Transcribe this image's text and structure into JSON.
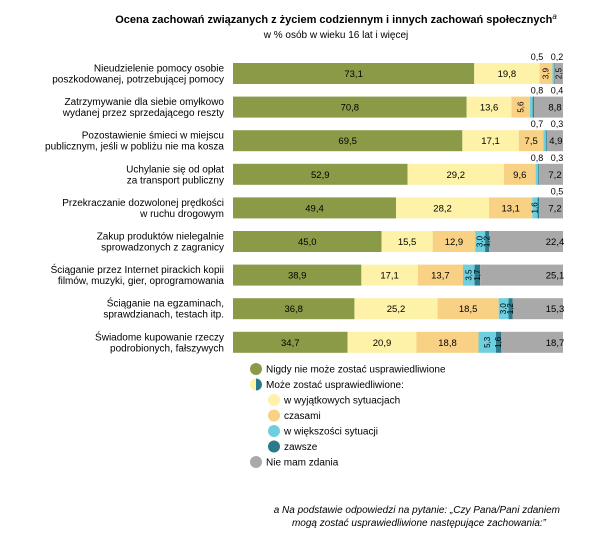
{
  "chart_data": {
    "type": "bar",
    "orientation": "horizontal",
    "stacked": true,
    "title": "Ocena zachowań związanych z życiem codziennym i innych zachowań społecznych",
    "title_marker": "a",
    "subtitle": "w % osób w wieku 16 lat i więcej",
    "categories": [
      [
        "Nieudzielenie pomocy osobie",
        "poszkodowanej, potrzebującej pomocy"
      ],
      [
        "Zatrzymywanie dla siebie omyłkowo",
        "wydanej przez sprzedającego reszty"
      ],
      [
        "Pozostawienie śmieci w miejscu",
        "publicznym, jeśli w pobliżu nie ma kosza"
      ],
      [
        "Uchylanie się od opłat",
        "za transport publiczny"
      ],
      [
        "Przekraczanie dozwolonej prędkości",
        "w ruchu drogowym"
      ],
      [
        "Zakup produktów nielegalnie",
        "sprowadzonych z zagranicy"
      ],
      [
        "Ściąganie przez Internet pirackich kopii",
        "filmów, muzyki, gier, oprogramowania"
      ],
      [
        "Ściąganie na egzaminach,",
        "sprawdzianach, testach itp."
      ],
      [
        "Świadome kupowanie rzeczy",
        "podrobionych, fałszywych"
      ]
    ],
    "series": [
      {
        "name": "Nigdy nie może zostać usprawiedliwione",
        "color": "#8a9a47",
        "values": [
          73.1,
          70.8,
          69.5,
          52.9,
          49.4,
          45.0,
          38.9,
          36.8,
          34.7
        ]
      },
      {
        "name": "w wyjątkowych sytuacjach",
        "color": "#fdf2a8",
        "values": [
          19.8,
          13.6,
          17.1,
          29.2,
          28.2,
          15.5,
          17.1,
          25.2,
          20.9
        ]
      },
      {
        "name": "czasami",
        "color": "#f8d184",
        "values": [
          3.9,
          5.6,
          7.5,
          9.6,
          13.1,
          12.9,
          13.7,
          18.5,
          18.8
        ]
      },
      {
        "name": "w większości sytuacji",
        "color": "#6ecfde",
        "values": [
          0.5,
          0.8,
          0.7,
          0.8,
          1.6,
          3.0,
          3.5,
          3.0,
          5.3
        ]
      },
      {
        "name": "zawsze",
        "color": "#2a7a8c",
        "values": [
          0.2,
          0.4,
          0.3,
          0.3,
          0.5,
          1.2,
          1.7,
          1.2,
          1.6
        ]
      },
      {
        "name": "Nie mam zdania",
        "color": "#a9a9a9",
        "values": [
          2.5,
          8.8,
          4.9,
          7.2,
          7.2,
          22.4,
          25.1,
          15.3,
          18.7
        ]
      }
    ],
    "value_labels": [
      [
        "73,1",
        "19,8",
        "3,9",
        "0,5",
        "0,2",
        "2,5"
      ],
      [
        "70,8",
        "13,6",
        "5,6",
        "0,8",
        "0,4",
        "8,8"
      ],
      [
        "69,5",
        "17,1",
        "7,5",
        "0,7",
        "0,3",
        "4,9"
      ],
      [
        "52,9",
        "29,2",
        "9,6",
        "0,8",
        "0,3",
        "7,2"
      ],
      [
        "49,4",
        "28,2",
        "13,1",
        "1,6",
        "0,5",
        "7,2"
      ],
      [
        "45,0",
        "15,5",
        "12,9",
        "3,0",
        "1,2",
        "22,4"
      ],
      [
        "38,9",
        "17,1",
        "13,7",
        "3,5",
        "1,7",
        "25,1"
      ],
      [
        "36,8",
        "25,2",
        "18,5",
        "3,0",
        "1,2",
        "15,3"
      ],
      [
        "34,7",
        "20,9",
        "18,8",
        "5,3",
        "1,6",
        "18,7"
      ]
    ],
    "xlim": [
      0,
      100
    ],
    "legend": {
      "position": "bottom",
      "items": [
        {
          "label": "Nigdy nie może zostać usprawiedliwione",
          "color": "#8a9a47",
          "level": 0
        },
        {
          "label": "Może zostać usprawiedliwione:",
          "color": "split",
          "level": 0
        },
        {
          "label": "w wyjątkowych sytuacjach",
          "color": "#fdf2a8",
          "level": 1
        },
        {
          "label": "czasami",
          "color": "#f8d184",
          "level": 1
        },
        {
          "label": "w większości sytuacji",
          "color": "#6ecfde",
          "level": 1
        },
        {
          "label": "zawsze",
          "color": "#2a7a8c",
          "level": 1
        },
        {
          "label": "Nie mam zdania",
          "color": "#a9a9a9",
          "level": 0
        }
      ]
    },
    "footnote": {
      "marker": "a",
      "lines": [
        "Na podstawie odpowiedzi na pytanie: „Czy Pana/Pani zdaniem",
        "mogą zostać usprawiedliwione następujące zachowania:”"
      ]
    }
  }
}
